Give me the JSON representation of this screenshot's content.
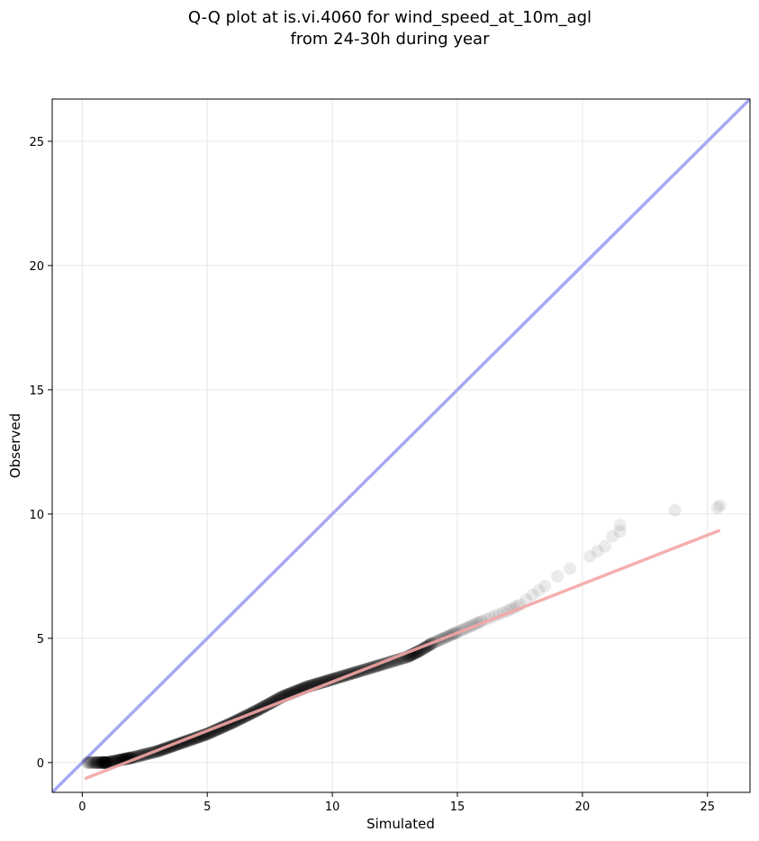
{
  "chart_data": {
    "type": "scatter",
    "title": [
      "Q-Q plot at is.vi.4060 for wind_speed_at_10m_agl",
      "from 24-30h during year"
    ],
    "xlabel": "Simulated",
    "ylabel": "Observed",
    "xlim": [
      -1.2,
      26.7
    ],
    "ylim": [
      -1.2,
      26.7
    ],
    "xticks": [
      0,
      5,
      10,
      15,
      20,
      25
    ],
    "yticks": [
      0,
      5,
      10,
      15,
      20,
      25
    ],
    "grid": true,
    "reference_line": {
      "x": [
        -1.2,
        26.7
      ],
      "y": [
        -1.2,
        26.7
      ],
      "color": "#a6a8f3"
    },
    "fit_line": {
      "x": [
        0.1,
        25.5
      ],
      "y": [
        -0.65,
        9.35
      ],
      "color": "#f4a6a6"
    },
    "points_curve": {
      "x": [
        0.2,
        0.5,
        0.8,
        1.0,
        1.5,
        2.0,
        3.0,
        4.0,
        5.0,
        6.0,
        7.0,
        8.0,
        9.0,
        10.0,
        11.0,
        12.0,
        13.0,
        13.5,
        14.0,
        15.0,
        16.0,
        17.0,
        17.5,
        18.0,
        18.5,
        19.0,
        19.5,
        20.0
      ],
      "y": [
        0.0,
        0.0,
        0.0,
        0.0,
        0.1,
        0.2,
        0.45,
        0.8,
        1.15,
        1.6,
        2.1,
        2.65,
        3.05,
        3.35,
        3.65,
        3.95,
        4.25,
        4.5,
        4.8,
        5.25,
        5.7,
        6.1,
        6.35,
        6.75,
        7.1,
        7.5,
        7.8,
        8.05
      ],
      "count": [
        10,
        18,
        24,
        30,
        40,
        45,
        55,
        55,
        55,
        55,
        55,
        55,
        50,
        45,
        40,
        35,
        32,
        25,
        20,
        12,
        6,
        4,
        2,
        2,
        1,
        1,
        1,
        1
      ]
    },
    "points_outliers": {
      "x": [
        20.3,
        20.6,
        20.9,
        21.2,
        21.5,
        21.5,
        23.7,
        25.4,
        25.5
      ],
      "y": [
        8.3,
        8.5,
        8.7,
        9.1,
        9.3,
        9.55,
        10.15,
        10.25,
        10.35
      ]
    },
    "point_color": "#000000"
  }
}
